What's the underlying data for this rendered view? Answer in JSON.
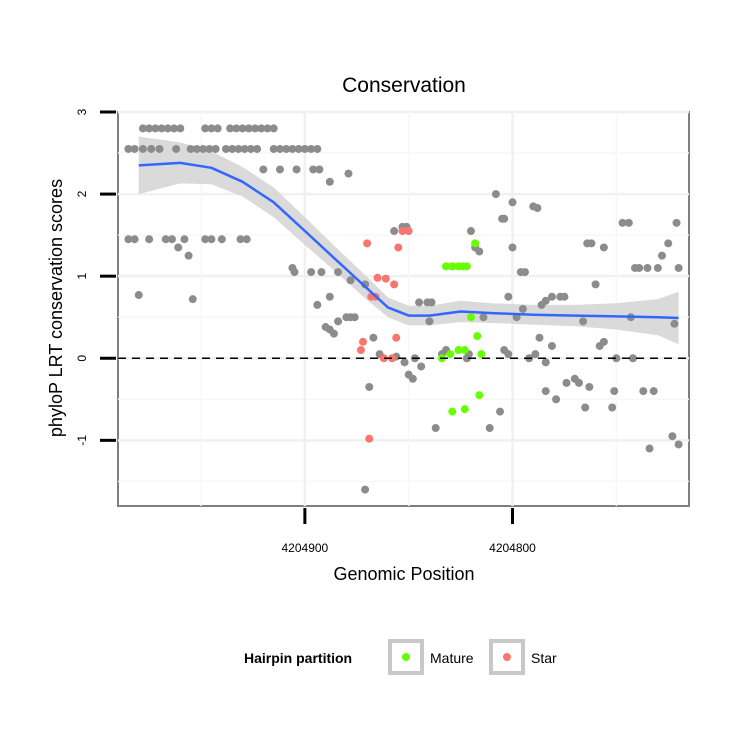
{
  "chart_data": {
    "type": "scatter",
    "title": "Conservation",
    "xlabel": "Genomic Position",
    "ylabel": "phyloP LRT conservation scores",
    "x_reversed": true,
    "xlim": [
      4204990,
      4204715
    ],
    "ylim": [
      -1.8,
      3.0
    ],
    "x_ticks": [
      4204900,
      4204800
    ],
    "y_ticks": [
      -1,
      0,
      1,
      2,
      3
    ],
    "reference_line": {
      "y": 0,
      "style": "dashed"
    },
    "legend": {
      "title": "Hairpin partition",
      "position": "bottom",
      "entries": [
        {
          "name": "Mature",
          "color": "#66ff00"
        },
        {
          "name": "Star",
          "color": "#f8766d"
        }
      ]
    },
    "colors": {
      "other": "#8c8c8c",
      "Mature": "#66ff00",
      "Star": "#f8766d",
      "smooth_line": "#3366ff",
      "ribbon": "#d3d3d3"
    },
    "series": [
      {
        "name": "Other",
        "points": [
          [
            4204985,
            2.55
          ],
          [
            4204982,
            2.55
          ],
          [
            4204978,
            2.55
          ],
          [
            4204974,
            2.55
          ],
          [
            4204970,
            2.55
          ],
          [
            4204962,
            2.55
          ],
          [
            4204978,
            2.8
          ],
          [
            4204975,
            2.8
          ],
          [
            4204972,
            2.8
          ],
          [
            4204969,
            2.8
          ],
          [
            4204966,
            2.8
          ],
          [
            4204963,
            2.8
          ],
          [
            4204960,
            2.8
          ],
          [
            4204948,
            2.8
          ],
          [
            4204945,
            2.8
          ],
          [
            4204942,
            2.8
          ],
          [
            4204936,
            2.8
          ],
          [
            4204933,
            2.8
          ],
          [
            4204930,
            2.8
          ],
          [
            4204927,
            2.8
          ],
          [
            4204924,
            2.8
          ],
          [
            4204921,
            2.8
          ],
          [
            4204918,
            2.8
          ],
          [
            4204915,
            2.8
          ],
          [
            4204955,
            2.55
          ],
          [
            4204952,
            2.55
          ],
          [
            4204949,
            2.55
          ],
          [
            4204946,
            2.55
          ],
          [
            4204943,
            2.55
          ],
          [
            4204938,
            2.55
          ],
          [
            4204935,
            2.55
          ],
          [
            4204932,
            2.55
          ],
          [
            4204929,
            2.55
          ],
          [
            4204926,
            2.55
          ],
          [
            4204923,
            2.55
          ],
          [
            4204915,
            2.55
          ],
          [
            4204912,
            2.55
          ],
          [
            4204909,
            2.55
          ],
          [
            4204906,
            2.55
          ],
          [
            4204903,
            2.55
          ],
          [
            4204900,
            2.55
          ],
          [
            4204897,
            2.55
          ],
          [
            4204894,
            2.55
          ],
          [
            4204920,
            2.3
          ],
          [
            4204912,
            2.3
          ],
          [
            4204904,
            2.3
          ],
          [
            4204896,
            2.3
          ],
          [
            4204893,
            2.3
          ],
          [
            4204888,
            2.15
          ],
          [
            4204879,
            2.25
          ],
          [
            4204985,
            1.45
          ],
          [
            4204982,
            1.45
          ],
          [
            4204975,
            1.45
          ],
          [
            4204967,
            1.45
          ],
          [
            4204964,
            1.45
          ],
          [
            4204961,
            1.35
          ],
          [
            4204958,
            1.45
          ],
          [
            4204956,
            1.25
          ],
          [
            4204948,
            1.45
          ],
          [
            4204945,
            1.45
          ],
          [
            4204940,
            1.45
          ],
          [
            4204931,
            1.45
          ],
          [
            4204928,
            1.45
          ],
          [
            4204980,
            0.77
          ],
          [
            4204954,
            0.72
          ],
          [
            4204906,
            1.1
          ],
          [
            4204905,
            1.05
          ],
          [
            4204897,
            1.05
          ],
          [
            4204892,
            1.05
          ],
          [
            4204884,
            1.05
          ],
          [
            4204894,
            0.65
          ],
          [
            4204888,
            0.75
          ],
          [
            4204878,
            0.95
          ],
          [
            4204871,
            0.9
          ],
          [
            4204880,
            0.5
          ],
          [
            4204878,
            0.5
          ],
          [
            4204876,
            0.5
          ],
          [
            4204884,
            0.45
          ],
          [
            4204890,
            0.38
          ],
          [
            4204888,
            0.35
          ],
          [
            4204886,
            0.3
          ],
          [
            4204867,
            0.25
          ],
          [
            4204864,
            0.05
          ],
          [
            4204856,
            0.02
          ],
          [
            4204852,
            -0.05
          ],
          [
            4204847,
            0.0
          ],
          [
            4204844,
            -0.1
          ],
          [
            4204850,
            -0.2
          ],
          [
            4204848,
            -0.25
          ],
          [
            4204869,
            -0.35
          ],
          [
            4204871,
            -1.6
          ],
          [
            4204853,
            1.6
          ],
          [
            4204857,
            1.55
          ],
          [
            4204851,
            1.6
          ],
          [
            4204845,
            0.68
          ],
          [
            4204841,
            0.68
          ],
          [
            4204839,
            0.68
          ],
          [
            4204832,
            0.1
          ],
          [
            4204834,
            0.05
          ],
          [
            4204840,
            0.45
          ],
          [
            4204837,
            -0.85
          ],
          [
            4204829,
            1.12
          ],
          [
            4204822,
            0.0
          ],
          [
            4204821,
            0.05
          ],
          [
            4204820,
            1.55
          ],
          [
            4204816,
            1.3
          ],
          [
            4204818,
            1.35
          ],
          [
            4204808,
            2.0
          ],
          [
            4204805,
            1.7
          ],
          [
            4204804,
            1.7
          ],
          [
            4204800,
            1.9
          ],
          [
            4204800,
            1.35
          ],
          [
            4204802,
            0.75
          ],
          [
            4204796,
            1.05
          ],
          [
            4204794,
            1.05
          ],
          [
            4204790,
            1.85
          ],
          [
            4204788,
            1.83
          ],
          [
            4204814,
            0.5
          ],
          [
            4204811,
            -0.85
          ],
          [
            4204806,
            -0.65
          ],
          [
            4204804,
            0.1
          ],
          [
            4204802,
            0.05
          ],
          [
            4204798,
            0.5
          ],
          [
            4204795,
            0.6
          ],
          [
            4204792,
            0.0
          ],
          [
            4204789,
            0.05
          ],
          [
            4204787,
            0.25
          ],
          [
            4204784,
            -0.05
          ],
          [
            4204781,
            0.15
          ],
          [
            4204786,
            0.65
          ],
          [
            4204784,
            0.7
          ],
          [
            4204781,
            0.75
          ],
          [
            4204777,
            0.75
          ],
          [
            4204775,
            0.75
          ],
          [
            4204784,
            -0.4
          ],
          [
            4204779,
            -0.5
          ],
          [
            4204774,
            -0.3
          ],
          [
            4204770,
            -0.25
          ],
          [
            4204768,
            -0.3
          ],
          [
            4204765,
            -0.6
          ],
          [
            4204763,
            -0.35
          ],
          [
            4204766,
            0.45
          ],
          [
            4204764,
            1.4
          ],
          [
            4204762,
            1.4
          ],
          [
            4204760,
            0.9
          ],
          [
            4204758,
            0.15
          ],
          [
            4204756,
            0.2
          ],
          [
            4204756,
            1.35
          ],
          [
            4204752,
            -0.6
          ],
          [
            4204751,
            -0.4
          ],
          [
            4204750,
            0.0
          ],
          [
            4204747,
            1.65
          ],
          [
            4204744,
            1.65
          ],
          [
            4204743,
            0.5
          ],
          [
            4204742,
            0.0
          ],
          [
            4204741,
            1.1
          ],
          [
            4204739,
            1.1
          ],
          [
            4204737,
            -0.4
          ],
          [
            4204735,
            1.1
          ],
          [
            4204734,
            -1.1
          ],
          [
            4204732,
            -0.4
          ],
          [
            4204730,
            1.1
          ],
          [
            4204728,
            1.25
          ],
          [
            4204725,
            1.4
          ],
          [
            4204723,
            -0.95
          ],
          [
            4204722,
            0.42
          ],
          [
            4204721,
            1.65
          ],
          [
            4204720,
            1.1
          ],
          [
            4204720,
            -1.05
          ]
        ]
      },
      {
        "name": "Mature",
        "points": [
          [
            4204832,
            1.12
          ],
          [
            4204829,
            1.12
          ],
          [
            4204826,
            1.12
          ],
          [
            4204824,
            1.12
          ],
          [
            4204822,
            1.12
          ],
          [
            4204818,
            1.4
          ],
          [
            4204820,
            0.5
          ],
          [
            4204817,
            0.27
          ],
          [
            4204815,
            0.05
          ],
          [
            4204834,
            0.0
          ],
          [
            4204830,
            0.05
          ],
          [
            4204826,
            0.1
          ],
          [
            4204823,
            0.1
          ],
          [
            4204829,
            -0.65
          ],
          [
            4204823,
            -0.62
          ],
          [
            4204816,
            -0.45
          ]
        ]
      },
      {
        "name": "Star",
        "points": [
          [
            4204870,
            1.4
          ],
          [
            4204865,
            0.98
          ],
          [
            4204861,
            0.97
          ],
          [
            4204855,
            1.35
          ],
          [
            4204857,
            0.9
          ],
          [
            4204853,
            1.55
          ],
          [
            4204850,
            1.55
          ],
          [
            4204866,
            0.75
          ],
          [
            4204868,
            0.75
          ],
          [
            4204862,
            0.0
          ],
          [
            4204858,
            0.0
          ],
          [
            4204856,
            0.25
          ],
          [
            4204872,
            0.2
          ],
          [
            4204873,
            0.1
          ],
          [
            4204869,
            -0.98
          ]
        ]
      }
    ],
    "smooth_line": {
      "x": [
        4204980,
        4204960,
        4204945,
        4204930,
        4204915,
        4204900,
        4204885,
        4204870,
        4204860,
        4204850,
        4204840,
        4204825,
        4204810,
        4204790,
        4204770,
        4204750,
        4204730,
        4204720
      ],
      "y": [
        2.35,
        2.38,
        2.32,
        2.15,
        1.9,
        1.55,
        1.2,
        0.85,
        0.62,
        0.52,
        0.52,
        0.57,
        0.55,
        0.53,
        0.52,
        0.51,
        0.5,
        0.49
      ],
      "se": [
        0.35,
        0.25,
        0.2,
        0.18,
        0.18,
        0.17,
        0.15,
        0.14,
        0.12,
        0.12,
        0.12,
        0.13,
        0.12,
        0.12,
        0.13,
        0.16,
        0.22,
        0.32
      ]
    }
  }
}
